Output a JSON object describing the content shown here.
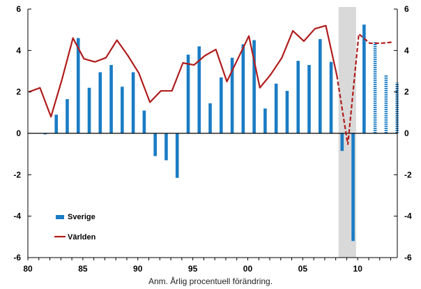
{
  "chart_data": {
    "type": "bar+line",
    "title": "",
    "xlabel": "",
    "ylabel": "",
    "ylim": [
      -6,
      6
    ],
    "yticks": [
      -6,
      -4,
      -2,
      0,
      2,
      4,
      6
    ],
    "xtick_labels": [
      "80",
      "85",
      "90",
      "95",
      "00",
      "05",
      "10"
    ],
    "xtick_years": [
      1980,
      1985,
      1990,
      1995,
      2000,
      2005,
      2010
    ],
    "x": [
      1980,
      1981,
      1982,
      1983,
      1984,
      1985,
      1986,
      1987,
      1988,
      1989,
      1990,
      1991,
      1992,
      1993,
      1994,
      1995,
      1996,
      1997,
      1998,
      1999,
      2000,
      2001,
      2002,
      2003,
      2004,
      2005,
      2006,
      2007,
      2008,
      2009,
      2010,
      2011,
      2012,
      2013
    ],
    "series": [
      {
        "name": "Sverige",
        "type": "bar",
        "color": "#1a7cc4",
        "values": [
          0,
          -0.05,
          0.9,
          1.65,
          4.6,
          2.2,
          2.95,
          3.3,
          2.25,
          2.95,
          1.1,
          -1.1,
          -1.3,
          -2.15,
          3.8,
          4.2,
          1.45,
          2.7,
          3.65,
          4.3,
          4.5,
          1.2,
          2.4,
          2.05,
          3.5,
          3.3,
          4.55,
          3.45,
          -0.85,
          -5.2,
          5.25,
          4.4,
          2.8,
          2.45
        ],
        "forecast_from": 2011
      },
      {
        "name": "Världen",
        "type": "line",
        "color": "#b01c1c",
        "values": [
          2.0,
          2.2,
          0.8,
          2.6,
          4.6,
          3.6,
          3.45,
          3.65,
          4.5,
          3.75,
          2.9,
          1.5,
          2.05,
          2.05,
          3.4,
          3.3,
          3.75,
          4.05,
          2.5,
          3.6,
          4.7,
          2.2,
          2.85,
          3.65,
          4.95,
          4.45,
          5.05,
          5.2,
          2.8,
          -0.55,
          4.8,
          4.35,
          4.35,
          4.4
        ],
        "forecast_from": 2009
      }
    ],
    "shaded_region": [
      2008,
      2009
    ],
    "legend": {
      "placement": "bottom-left",
      "entries": [
        "Sverige",
        "Världen"
      ]
    },
    "grid": false
  },
  "note": "Anm. Årlig procentuell förändring."
}
